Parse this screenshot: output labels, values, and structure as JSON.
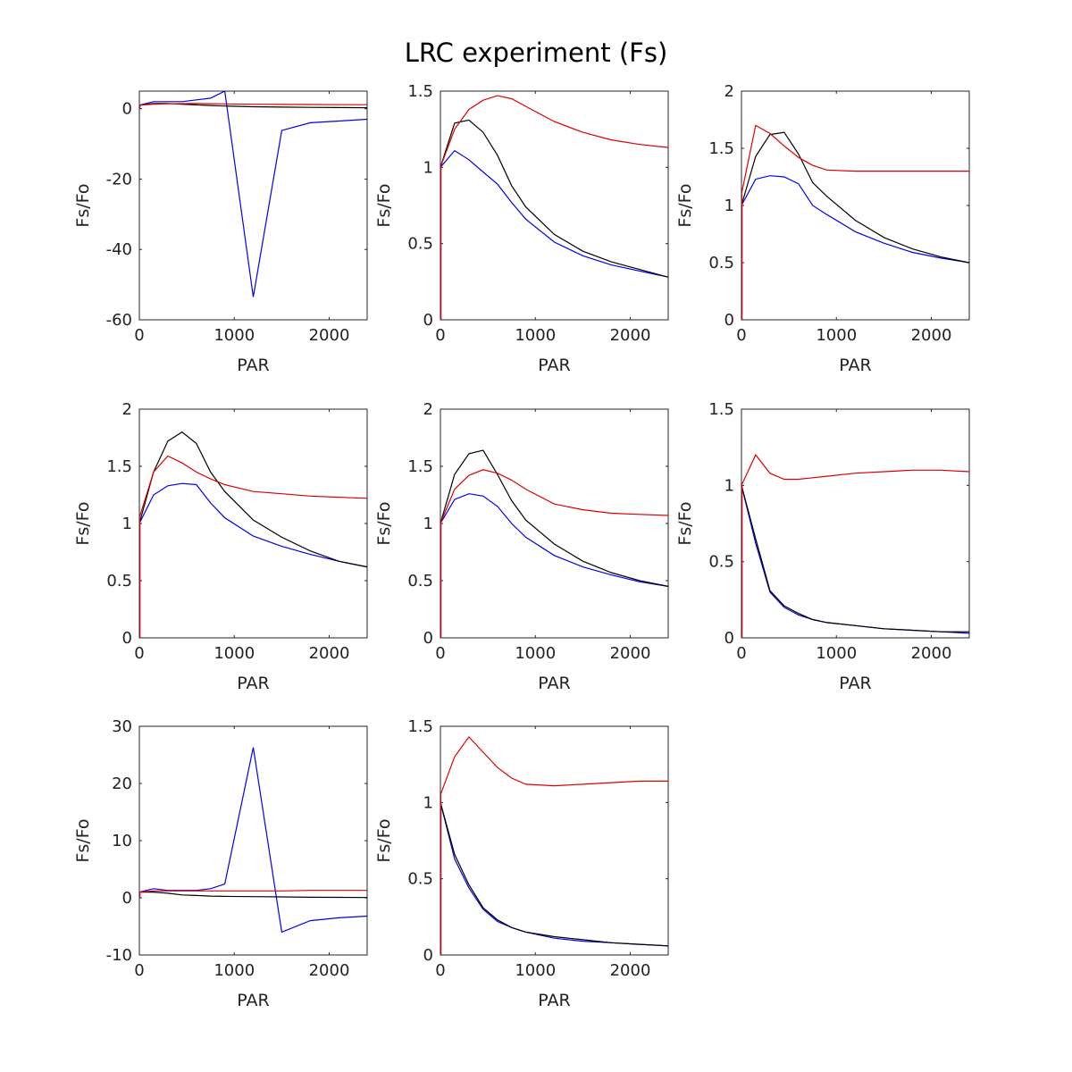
{
  "figure": {
    "title": "LRC experiment (Fs)",
    "colors": {
      "blue": "#0000ee",
      "black": "#000000",
      "red": "#dd0000"
    }
  },
  "chart_data": [
    {
      "type": "line",
      "xlabel": "PAR",
      "ylabel": "Fs/Fo",
      "xlim": [
        0,
        2400
      ],
      "ylim": [
        -60,
        5
      ],
      "xticks": [
        0,
        1000,
        2000
      ],
      "yticks": [
        -60,
        -40,
        -20,
        0
      ],
      "series": [
        {
          "color": "#0000ee",
          "x": [
            0,
            150,
            300,
            450,
            600,
            750,
            900,
            1200,
            1500,
            1800,
            2100,
            2400
          ],
          "y": [
            1.0,
            2.0,
            2.0,
            2.0,
            2.5,
            3.0,
            5.0,
            -53.5,
            -6.2,
            -4.0,
            -3.5,
            -3.0
          ]
        },
        {
          "color": "#000000",
          "x": [
            0,
            150,
            300,
            450,
            600,
            750,
            900,
            1200,
            1500,
            1800,
            2100,
            2400
          ],
          "y": [
            1.0,
            1.5,
            1.5,
            1.3,
            1.1,
            0.9,
            0.75,
            0.55,
            0.45,
            0.38,
            0.33,
            0.28
          ]
        },
        {
          "color": "#dd0000",
          "x": [
            0,
            150,
            300,
            450,
            600,
            750,
            900,
            1200,
            1500,
            1800,
            2100,
            2400
          ],
          "y": [
            1.0,
            1.3,
            1.4,
            1.45,
            1.47,
            1.43,
            1.38,
            1.28,
            1.22,
            1.18,
            1.15,
            1.13
          ]
        }
      ]
    },
    {
      "type": "line",
      "xlabel": "PAR",
      "ylabel": "Fs/Fo",
      "xlim": [
        0,
        2400
      ],
      "ylim": [
        0,
        1.5
      ],
      "xticks": [
        0,
        1000,
        2000
      ],
      "yticks": [
        0,
        0.5,
        1,
        1.5
      ],
      "series": [
        {
          "color": "#0000ee",
          "x": [
            0,
            150,
            300,
            450,
            600,
            750,
            900,
            1200,
            1500,
            1800,
            2100,
            2400
          ],
          "y": [
            1.0,
            1.11,
            1.05,
            0.97,
            0.89,
            0.77,
            0.66,
            0.51,
            0.42,
            0.36,
            0.32,
            0.28
          ]
        },
        {
          "color": "#000000",
          "x": [
            0,
            150,
            300,
            450,
            600,
            750,
            900,
            1200,
            1500,
            1800,
            2100,
            2400
          ],
          "y": [
            1.0,
            1.29,
            1.31,
            1.23,
            1.08,
            0.88,
            0.74,
            0.56,
            0.45,
            0.38,
            0.33,
            0.28
          ]
        },
        {
          "color": "#dd0000",
          "x": [
            0,
            150,
            300,
            450,
            600,
            750,
            900,
            1200,
            1500,
            1800,
            2100,
            2400
          ],
          "y": [
            1.0,
            1.25,
            1.38,
            1.44,
            1.47,
            1.45,
            1.4,
            1.3,
            1.23,
            1.18,
            1.15,
            1.13
          ]
        }
      ]
    },
    {
      "type": "line",
      "xlabel": "PAR",
      "ylabel": "Fs/Fo",
      "xlim": [
        0,
        2400
      ],
      "ylim": [
        0,
        2
      ],
      "xticks": [
        0,
        1000,
        2000
      ],
      "yticks": [
        0,
        0.5,
        1,
        1.5,
        2
      ],
      "series": [
        {
          "color": "#0000ee",
          "x": [
            0,
            150,
            300,
            450,
            600,
            750,
            900,
            1200,
            1500,
            1800,
            2100,
            2400
          ],
          "y": [
            1.0,
            1.23,
            1.26,
            1.25,
            1.19,
            1.0,
            0.92,
            0.77,
            0.67,
            0.59,
            0.54,
            0.5
          ]
        },
        {
          "color": "#000000",
          "x": [
            0,
            150,
            300,
            450,
            600,
            750,
            900,
            1200,
            1500,
            1800,
            2100,
            2400
          ],
          "y": [
            1.0,
            1.43,
            1.62,
            1.64,
            1.45,
            1.2,
            1.08,
            0.87,
            0.72,
            0.62,
            0.55,
            0.5
          ]
        },
        {
          "color": "#dd0000",
          "x": [
            0,
            150,
            300,
            450,
            600,
            750,
            900,
            1200,
            1500,
            1800,
            2100,
            2400
          ],
          "y": [
            1.1,
            1.7,
            1.63,
            1.52,
            1.42,
            1.35,
            1.31,
            1.3,
            1.3,
            1.3,
            1.3,
            1.3
          ]
        }
      ]
    },
    {
      "type": "line",
      "xlabel": "PAR",
      "ylabel": "Fs/Fo",
      "xlim": [
        0,
        2400
      ],
      "ylim": [
        0,
        2
      ],
      "xticks": [
        0,
        1000,
        2000
      ],
      "yticks": [
        0,
        0.5,
        1,
        1.5,
        2
      ],
      "series": [
        {
          "color": "#0000ee",
          "x": [
            0,
            150,
            300,
            450,
            600,
            750,
            900,
            1200,
            1500,
            1800,
            2100,
            2400
          ],
          "y": [
            1.0,
            1.25,
            1.33,
            1.35,
            1.34,
            1.18,
            1.05,
            0.89,
            0.8,
            0.73,
            0.67,
            0.62
          ]
        },
        {
          "color": "#000000",
          "x": [
            0,
            150,
            300,
            450,
            600,
            750,
            900,
            1200,
            1500,
            1800,
            2100,
            2400
          ],
          "y": [
            1.0,
            1.45,
            1.72,
            1.8,
            1.7,
            1.45,
            1.28,
            1.03,
            0.88,
            0.76,
            0.67,
            0.62
          ]
        },
        {
          "color": "#dd0000",
          "x": [
            0,
            150,
            300,
            450,
            600,
            750,
            900,
            1200,
            1500,
            1800,
            2100,
            2400
          ],
          "y": [
            1.05,
            1.45,
            1.59,
            1.53,
            1.45,
            1.39,
            1.34,
            1.28,
            1.26,
            1.24,
            1.23,
            1.22
          ]
        }
      ]
    },
    {
      "type": "line",
      "xlabel": "PAR",
      "ylabel": "Fs/Fo",
      "xlim": [
        0,
        2400
      ],
      "ylim": [
        0,
        2
      ],
      "xticks": [
        0,
        1000,
        2000
      ],
      "yticks": [
        0,
        0.5,
        1,
        1.5,
        2
      ],
      "series": [
        {
          "color": "#0000ee",
          "x": [
            0,
            150,
            300,
            450,
            600,
            750,
            900,
            1200,
            1500,
            1800,
            2100,
            2400
          ],
          "y": [
            1.0,
            1.21,
            1.26,
            1.24,
            1.15,
            1.0,
            0.88,
            0.72,
            0.62,
            0.55,
            0.49,
            0.45
          ]
        },
        {
          "color": "#000000",
          "x": [
            0,
            150,
            300,
            450,
            600,
            750,
            900,
            1200,
            1500,
            1800,
            2100,
            2400
          ],
          "y": [
            1.0,
            1.43,
            1.61,
            1.64,
            1.43,
            1.2,
            1.03,
            0.82,
            0.67,
            0.57,
            0.5,
            0.45
          ]
        },
        {
          "color": "#dd0000",
          "x": [
            0,
            150,
            300,
            450,
            600,
            750,
            900,
            1200,
            1500,
            1800,
            2100,
            2400
          ],
          "y": [
            1.0,
            1.3,
            1.42,
            1.47,
            1.44,
            1.38,
            1.3,
            1.17,
            1.12,
            1.09,
            1.08,
            1.07
          ]
        }
      ]
    },
    {
      "type": "line",
      "xlabel": "PAR",
      "ylabel": "Fs/Fo",
      "xlim": [
        0,
        2400
      ],
      "ylim": [
        0,
        1.5
      ],
      "xticks": [
        0,
        1000,
        2000
      ],
      "yticks": [
        0,
        0.5,
        1,
        1.5
      ],
      "series": [
        {
          "color": "#0000ee",
          "x": [
            0,
            150,
            300,
            450,
            600,
            750,
            900,
            1200,
            1500,
            1800,
            2100,
            2400
          ],
          "y": [
            1.0,
            0.62,
            0.3,
            0.2,
            0.15,
            0.12,
            0.1,
            0.08,
            0.06,
            0.05,
            0.04,
            0.03
          ]
        },
        {
          "color": "#000000",
          "x": [
            0,
            150,
            300,
            450,
            600,
            750,
            900,
            1200,
            1500,
            1800,
            2100,
            2400
          ],
          "y": [
            1.0,
            0.65,
            0.31,
            0.21,
            0.16,
            0.12,
            0.1,
            0.08,
            0.06,
            0.05,
            0.04,
            0.04
          ]
        },
        {
          "color": "#dd0000",
          "x": [
            0,
            150,
            300,
            450,
            600,
            750,
            900,
            1200,
            1500,
            1800,
            2100,
            2400
          ],
          "y": [
            1.0,
            1.2,
            1.08,
            1.04,
            1.04,
            1.05,
            1.06,
            1.08,
            1.09,
            1.1,
            1.1,
            1.09
          ]
        }
      ]
    },
    {
      "type": "line",
      "xlabel": "PAR",
      "ylabel": "Fs/Fo",
      "xlim": [
        0,
        2400
      ],
      "ylim": [
        -10,
        30
      ],
      "xticks": [
        0,
        1000,
        2000
      ],
      "yticks": [
        -10,
        0,
        10,
        20,
        30
      ],
      "series": [
        {
          "color": "#0000ee",
          "x": [
            0,
            150,
            300,
            450,
            600,
            750,
            900,
            1200,
            1500,
            1800,
            2100,
            2400
          ],
          "y": [
            1.0,
            1.6,
            1.3,
            1.3,
            1.3,
            1.6,
            2.4,
            26.3,
            -6.0,
            -4.0,
            -3.5,
            -3.2
          ]
        },
        {
          "color": "#000000",
          "x": [
            0,
            150,
            300,
            450,
            600,
            750,
            900,
            1200,
            1500,
            1800,
            2100,
            2400
          ],
          "y": [
            1.0,
            1.0,
            0.8,
            0.5,
            0.4,
            0.3,
            0.25,
            0.2,
            0.15,
            0.1,
            0.08,
            0.05
          ]
        },
        {
          "color": "#dd0000",
          "x": [
            0,
            150,
            300,
            450,
            600,
            750,
            900,
            1200,
            1500,
            1800,
            2100,
            2400
          ],
          "y": [
            1.0,
            1.2,
            1.2,
            1.2,
            1.2,
            1.2,
            1.2,
            1.2,
            1.2,
            1.3,
            1.3,
            1.3
          ]
        }
      ]
    },
    {
      "type": "line",
      "xlabel": "PAR",
      "ylabel": "Fs/Fo",
      "xlim": [
        0,
        2400
      ],
      "ylim": [
        0,
        1.5
      ],
      "xticks": [
        0,
        1000,
        2000
      ],
      "yticks": [
        0,
        0.5,
        1,
        1.5
      ],
      "series": [
        {
          "color": "#0000ee",
          "x": [
            0,
            150,
            300,
            450,
            600,
            750,
            900,
            1200,
            1500,
            1800,
            2100,
            2400
          ],
          "y": [
            1.0,
            0.63,
            0.44,
            0.3,
            0.22,
            0.18,
            0.15,
            0.11,
            0.09,
            0.08,
            0.07,
            0.06
          ]
        },
        {
          "color": "#000000",
          "x": [
            0,
            150,
            300,
            450,
            600,
            750,
            900,
            1200,
            1500,
            1800,
            2100,
            2400
          ],
          "y": [
            1.0,
            0.66,
            0.46,
            0.31,
            0.23,
            0.18,
            0.15,
            0.12,
            0.1,
            0.08,
            0.07,
            0.06
          ]
        },
        {
          "color": "#dd0000",
          "x": [
            0,
            150,
            300,
            450,
            600,
            750,
            900,
            1200,
            1500,
            1800,
            2100,
            2400
          ],
          "y": [
            1.05,
            1.3,
            1.43,
            1.33,
            1.23,
            1.16,
            1.12,
            1.11,
            1.12,
            1.13,
            1.14,
            1.14
          ]
        }
      ]
    }
  ]
}
